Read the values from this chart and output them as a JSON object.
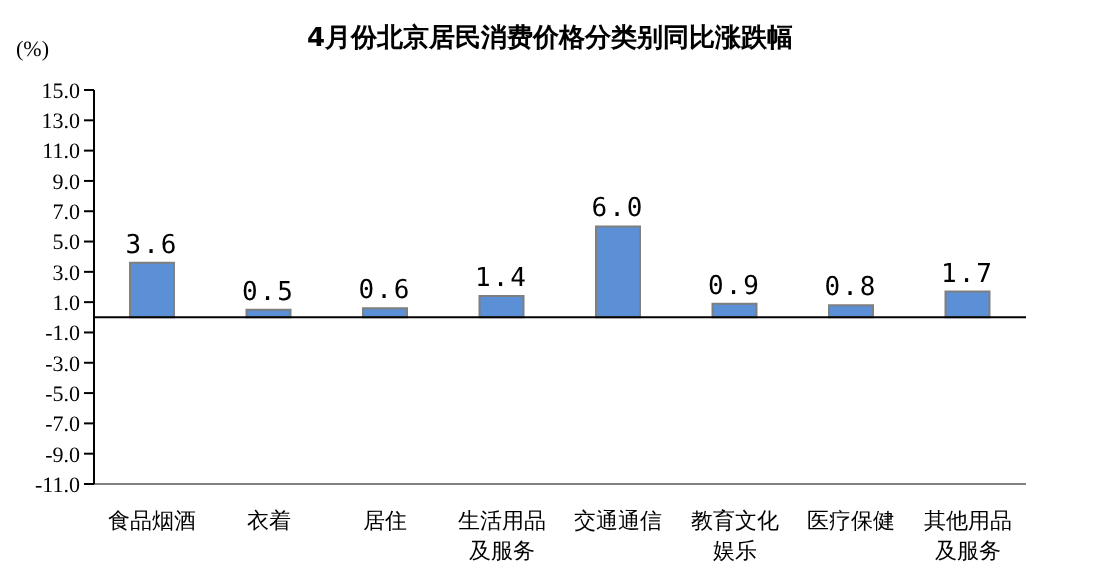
{
  "chart_data": {
    "type": "bar",
    "title": "4月份北京居民消费价格分类别同比涨跌幅",
    "ylabel": "(%)",
    "categories": [
      "食品烟酒",
      "衣着",
      "居住",
      "生活用品及服务",
      "交通通信",
      "教育文化娱乐",
      "医疗保健",
      "其他用品及服务"
    ],
    "values": [
      3.6,
      0.5,
      0.6,
      1.4,
      6.0,
      0.9,
      0.8,
      1.7
    ],
    "color": "#5b8fd6",
    "ylim": [
      -11,
      15
    ],
    "yticks": [
      {
        "value": 15,
        "label": "15.0"
      },
      {
        "value": 13,
        "label": "13.0"
      },
      {
        "value": 11,
        "label": "11.0"
      },
      {
        "value": 9,
        "label": "9.0"
      },
      {
        "value": 7,
        "label": "7.0"
      },
      {
        "value": 5,
        "label": "5.0"
      },
      {
        "value": 3,
        "label": "3.0"
      },
      {
        "value": 1,
        "label": "1.0"
      },
      {
        "value": -1,
        "label": "-1.0"
      },
      {
        "value": -3,
        "label": "-3.0"
      },
      {
        "value": -5,
        "label": "-5.0"
      },
      {
        "value": -7,
        "label": "-7.0"
      },
      {
        "value": -9,
        "label": "-9.0"
      },
      {
        "value": -11,
        "label": "-11.0"
      }
    ],
    "value_labels": [
      "3.6",
      "0.5",
      "0.6",
      "1.4",
      "6.0",
      "0.9",
      "0.8",
      "1.7"
    ],
    "grid": false,
    "legend": false
  }
}
